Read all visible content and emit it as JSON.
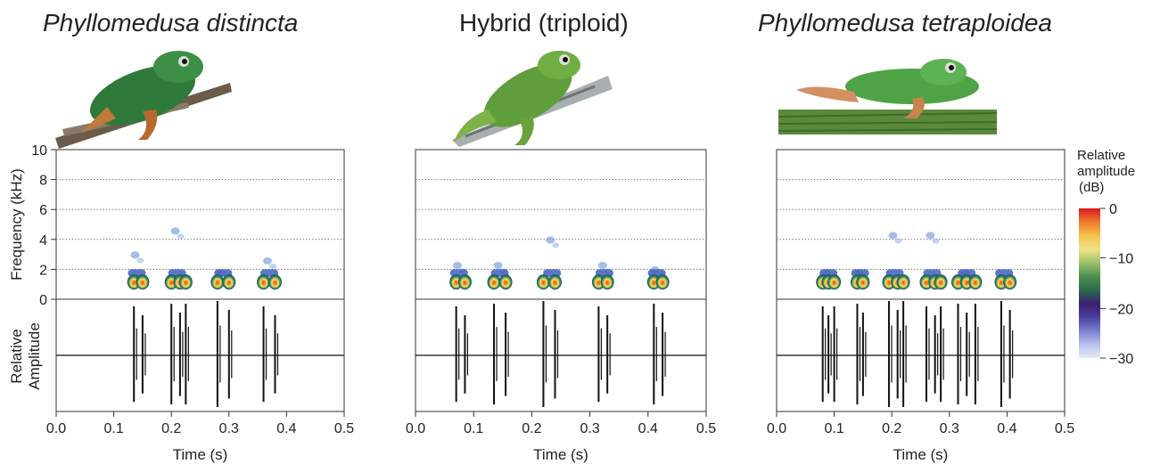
{
  "panels": [
    {
      "title": "Phyllomedusa distincta",
      "italic": true
    },
    {
      "title": "Hybrid (triploid)",
      "italic": false
    },
    {
      "title": "Phyllomedusa tetraploidea",
      "italic": true
    }
  ],
  "axes": {
    "frequency_label": "Frequency (kHz)",
    "amplitude_label": "Relative Amplitude",
    "time_label": "Time (s)",
    "freq_ticks": [
      "0",
      "2",
      "4",
      "6",
      "8",
      "10"
    ],
    "time_ticks": [
      "0.0",
      "0.1",
      "0.2",
      "0.3",
      "0.4",
      "0.5"
    ]
  },
  "legend": {
    "title_line1": "Relative",
    "title_line2": "amplitude",
    "title_line3": "(dB)",
    "ticks": [
      "0",
      "−10",
      "−20",
      "−30"
    ],
    "colors": [
      "#d7191c",
      "#f07a30",
      "#f4c04a",
      "#f2e28a",
      "#9cc36a",
      "#4f8f4f",
      "#2b6a4d",
      "#3a1f6e",
      "#4b3fa0",
      "#7a7fd0",
      "#b8c3ec",
      "#e4ebf8"
    ]
  },
  "chart_data": [
    {
      "type": "spectrogram+waveform",
      "title": "Phyllomedusa distincta",
      "xlabel": "Time (s)",
      "ylabel": "Frequency (kHz)",
      "xlim": [
        0,
        0.5
      ],
      "ylim": [
        0,
        10
      ],
      "grid": "dotted horizontal at 2 kHz steps",
      "notes_s": [
        {
          "t": 0.14,
          "pulses": [
            0.135,
            0.15
          ],
          "fmax_khz": 3.2
        },
        {
          "t": 0.21,
          "pulses": [
            0.2,
            0.215,
            0.225
          ],
          "fmax_khz": 4.8
        },
        {
          "t": 0.29,
          "pulses": [
            0.28,
            0.3
          ],
          "fmax_khz": 2.0
        },
        {
          "t": 0.37,
          "pulses": [
            0.36,
            0.38
          ],
          "fmax_khz": 2.8
        }
      ]
    },
    {
      "type": "spectrogram+waveform",
      "title": "Hybrid (triploid)",
      "xlabel": "Time (s)",
      "ylabel": "",
      "xlim": [
        0,
        0.5
      ],
      "ylim": [
        0,
        10
      ],
      "grid": "dotted horizontal at 2 kHz steps",
      "notes_s": [
        {
          "t": 0.075,
          "pulses": [
            0.07,
            0.085
          ],
          "fmax_khz": 2.5
        },
        {
          "t": 0.145,
          "pulses": [
            0.135,
            0.155
          ],
          "fmax_khz": 2.5
        },
        {
          "t": 0.235,
          "pulses": [
            0.22,
            0.24
          ],
          "fmax_khz": 4.2
        },
        {
          "t": 0.325,
          "pulses": [
            0.315,
            0.33
          ],
          "fmax_khz": 2.5
        },
        {
          "t": 0.415,
          "pulses": [
            0.41,
            0.425
          ],
          "fmax_khz": 2.2
        }
      ]
    },
    {
      "type": "spectrogram+waveform",
      "title": "Phyllomedusa tetraploidea",
      "xlabel": "Time (s)",
      "ylabel": "",
      "xlim": [
        0,
        0.5
      ],
      "ylim": [
        0,
        10
      ],
      "grid": "dotted horizontal at 2 kHz steps",
      "notes_s": [
        {
          "t": 0.09,
          "pulses": [
            0.08,
            0.09,
            0.1
          ],
          "fmax_khz": 2.0
        },
        {
          "t": 0.145,
          "pulses": [
            0.14,
            0.15
          ],
          "fmax_khz": 2.0
        },
        {
          "t": 0.205,
          "pulses": [
            0.195,
            0.21,
            0.22
          ],
          "fmax_khz": 4.5
        },
        {
          "t": 0.27,
          "pulses": [
            0.26,
            0.275,
            0.285
          ],
          "fmax_khz": 4.5
        },
        {
          "t": 0.33,
          "pulses": [
            0.315,
            0.33,
            0.345
          ],
          "fmax_khz": 2.0
        },
        {
          "t": 0.395,
          "pulses": [
            0.39,
            0.405
          ],
          "fmax_khz": 1.5
        }
      ]
    }
  ]
}
